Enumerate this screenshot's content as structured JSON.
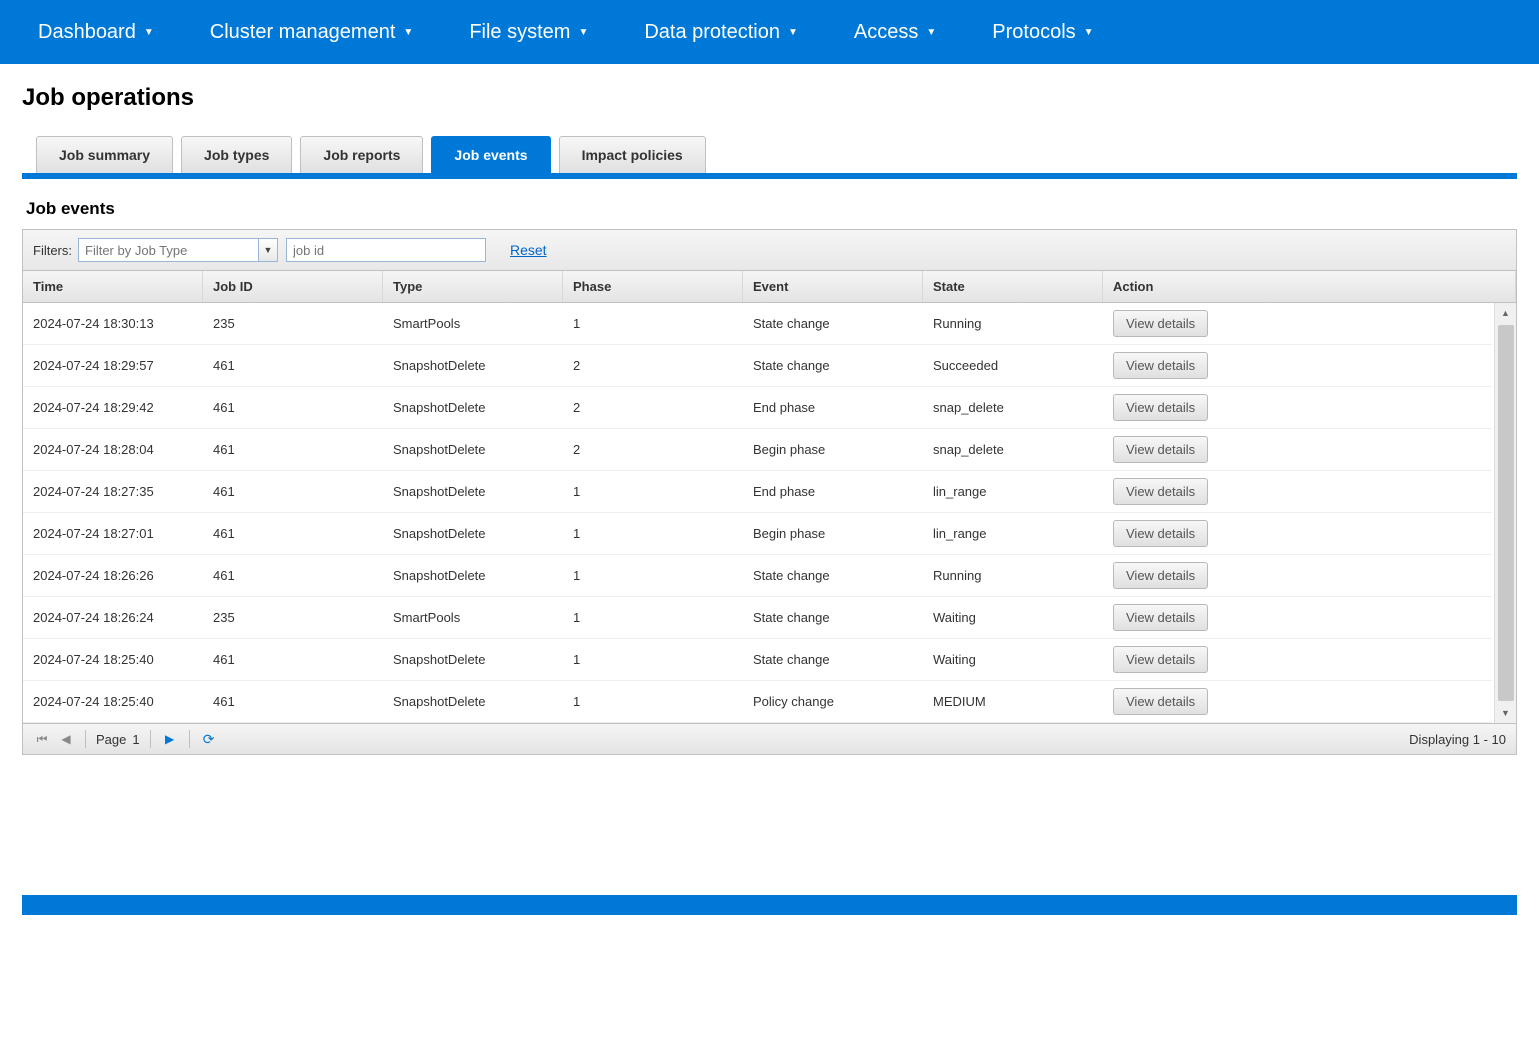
{
  "colors": {
    "primary": "#0078d7",
    "border": "#c0c0c0",
    "text": "#333333",
    "link": "#0066cc"
  },
  "topnav": {
    "items": [
      {
        "label": "Dashboard"
      },
      {
        "label": "Cluster management"
      },
      {
        "label": "File system"
      },
      {
        "label": "Data protection"
      },
      {
        "label": "Access"
      },
      {
        "label": "Protocols"
      }
    ]
  },
  "page": {
    "title": "Job operations",
    "section_title": "Job events"
  },
  "tabs": [
    {
      "label": "Job summary",
      "active": false
    },
    {
      "label": "Job types",
      "active": false
    },
    {
      "label": "Job reports",
      "active": false
    },
    {
      "label": "Job events",
      "active": true
    },
    {
      "label": "Impact policies",
      "active": false
    }
  ],
  "filters": {
    "label": "Filters:",
    "jobtype_placeholder": "Filter by Job Type",
    "jobid_placeholder": "job id",
    "reset_label": "Reset"
  },
  "grid": {
    "columns": [
      {
        "key": "time",
        "label": "Time"
      },
      {
        "key": "jobid",
        "label": "Job ID"
      },
      {
        "key": "type",
        "label": "Type"
      },
      {
        "key": "phase",
        "label": "Phase"
      },
      {
        "key": "event",
        "label": "Event"
      },
      {
        "key": "state",
        "label": "State"
      },
      {
        "key": "action",
        "label": "Action"
      }
    ],
    "action_label": "View details",
    "rows": [
      {
        "time": "2024-07-24 18:30:13",
        "jobid": "235",
        "type": "SmartPools",
        "phase": "1",
        "event": "State change",
        "state": "Running"
      },
      {
        "time": "2024-07-24 18:29:57",
        "jobid": "461",
        "type": "SnapshotDelete",
        "phase": "2",
        "event": "State change",
        "state": "Succeeded"
      },
      {
        "time": "2024-07-24 18:29:42",
        "jobid": "461",
        "type": "SnapshotDelete",
        "phase": "2",
        "event": "End phase",
        "state": "snap_delete"
      },
      {
        "time": "2024-07-24 18:28:04",
        "jobid": "461",
        "type": "SnapshotDelete",
        "phase": "2",
        "event": "Begin phase",
        "state": "snap_delete"
      },
      {
        "time": "2024-07-24 18:27:35",
        "jobid": "461",
        "type": "SnapshotDelete",
        "phase": "1",
        "event": "End phase",
        "state": "lin_range"
      },
      {
        "time": "2024-07-24 18:27:01",
        "jobid": "461",
        "type": "SnapshotDelete",
        "phase": "1",
        "event": "Begin phase",
        "state": "lin_range"
      },
      {
        "time": "2024-07-24 18:26:26",
        "jobid": "461",
        "type": "SnapshotDelete",
        "phase": "1",
        "event": "State change",
        "state": "Running"
      },
      {
        "time": "2024-07-24 18:26:24",
        "jobid": "235",
        "type": "SmartPools",
        "phase": "1",
        "event": "State change",
        "state": "Waiting"
      },
      {
        "time": "2024-07-24 18:25:40",
        "jobid": "461",
        "type": "SnapshotDelete",
        "phase": "1",
        "event": "State change",
        "state": "Waiting"
      },
      {
        "time": "2024-07-24 18:25:40",
        "jobid": "461",
        "type": "SnapshotDelete",
        "phase": "1",
        "event": "Policy change",
        "state": "MEDIUM"
      }
    ]
  },
  "pager": {
    "page_label": "Page",
    "current_page": "1",
    "display_text": "Displaying 1 - 10"
  }
}
